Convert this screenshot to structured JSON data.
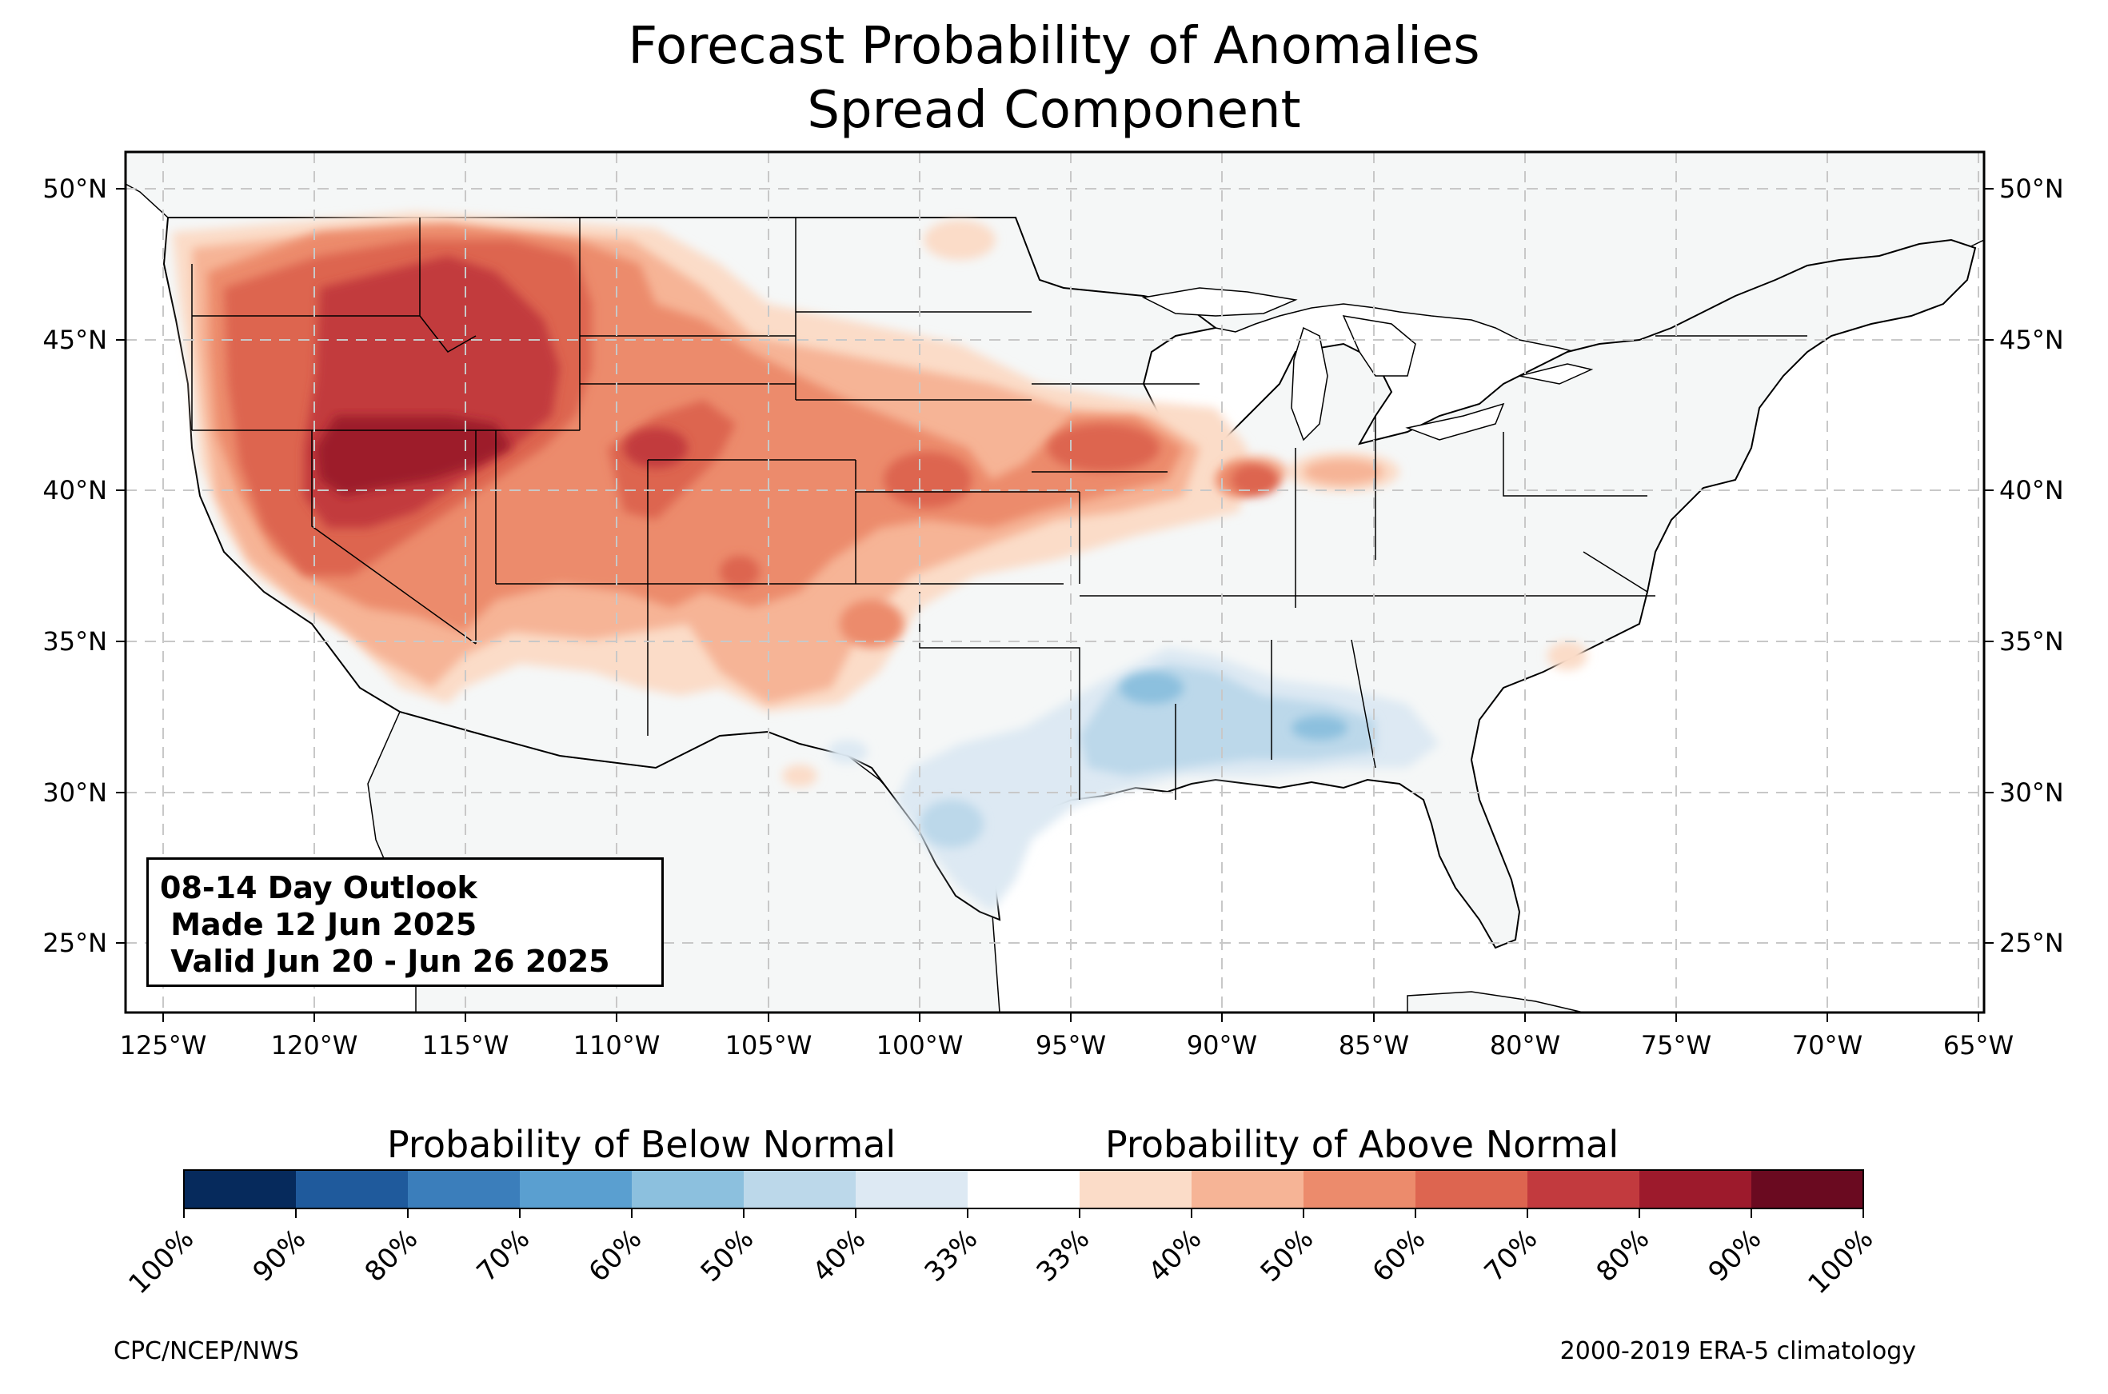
{
  "title": {
    "line1": "Forecast Probability of Anomalies",
    "line2": "Spread Component"
  },
  "info_box": {
    "line1": "08-14 Day Outlook",
    "line2": " Made 12 Jun 2025",
    "line3": " Valid Jun 20 - Jun 26 2025"
  },
  "colorbar": {
    "below_label": "Probability of Below Normal",
    "above_label": "Probability of Above Normal",
    "ticks": [
      "100%",
      "90%",
      "80%",
      "70%",
      "60%",
      "50%",
      "40%",
      "33%",
      "33%",
      "40%",
      "50%",
      "60%",
      "70%",
      "80%",
      "90%",
      "100%"
    ],
    "below_colors": [
      "#062a5c",
      "#1f5a9c",
      "#3b7ebb",
      "#5a9fd0",
      "#8cc0de",
      "#bcd8ea",
      "#dde9f3"
    ],
    "neutral_color": "#ffffff",
    "above_colors": [
      "#fbdcc8",
      "#f6b496",
      "#ec8b6c",
      "#dd6550",
      "#c23a3e",
      "#9d1a2c",
      "#6a0a20"
    ]
  },
  "axes": {
    "lon_labels": [
      "125°W",
      "120°W",
      "115°W",
      "110°W",
      "105°W",
      "100°W",
      "95°W",
      "90°W",
      "85°W",
      "80°W",
      "75°W",
      "70°W",
      "65°W"
    ],
    "lat_labels": [
      "50°N",
      "45°N",
      "40°N",
      "35°N",
      "30°N",
      "25°N"
    ]
  },
  "map": {
    "land_color": "#f5f7f7",
    "extent_lon": [
      -126.3,
      -64.9
    ],
    "extent_lat": [
      22.7,
      51.2
    ],
    "anomaly_regions": [
      {
        "name": "northwest-above",
        "category": "above",
        "prob": "50-70%"
      },
      {
        "name": "great-basin-above",
        "category": "above",
        "prob": "70-80%"
      },
      {
        "name": "central-rockies-above",
        "category": "above",
        "prob": "50-70%"
      },
      {
        "name": "central-plains-above",
        "category": "above",
        "prob": "40-60%"
      },
      {
        "name": "midwest-above",
        "category": "above",
        "prob": "40-60%"
      },
      {
        "name": "lower-mississippi-below",
        "category": "below",
        "prob": "40-60%"
      },
      {
        "name": "south-texas-below",
        "category": "below",
        "prob": "40-60%"
      }
    ]
  },
  "credits": {
    "left": "CPC/NCEP/NWS",
    "right": "2000-2019 ERA-5 climatology"
  }
}
